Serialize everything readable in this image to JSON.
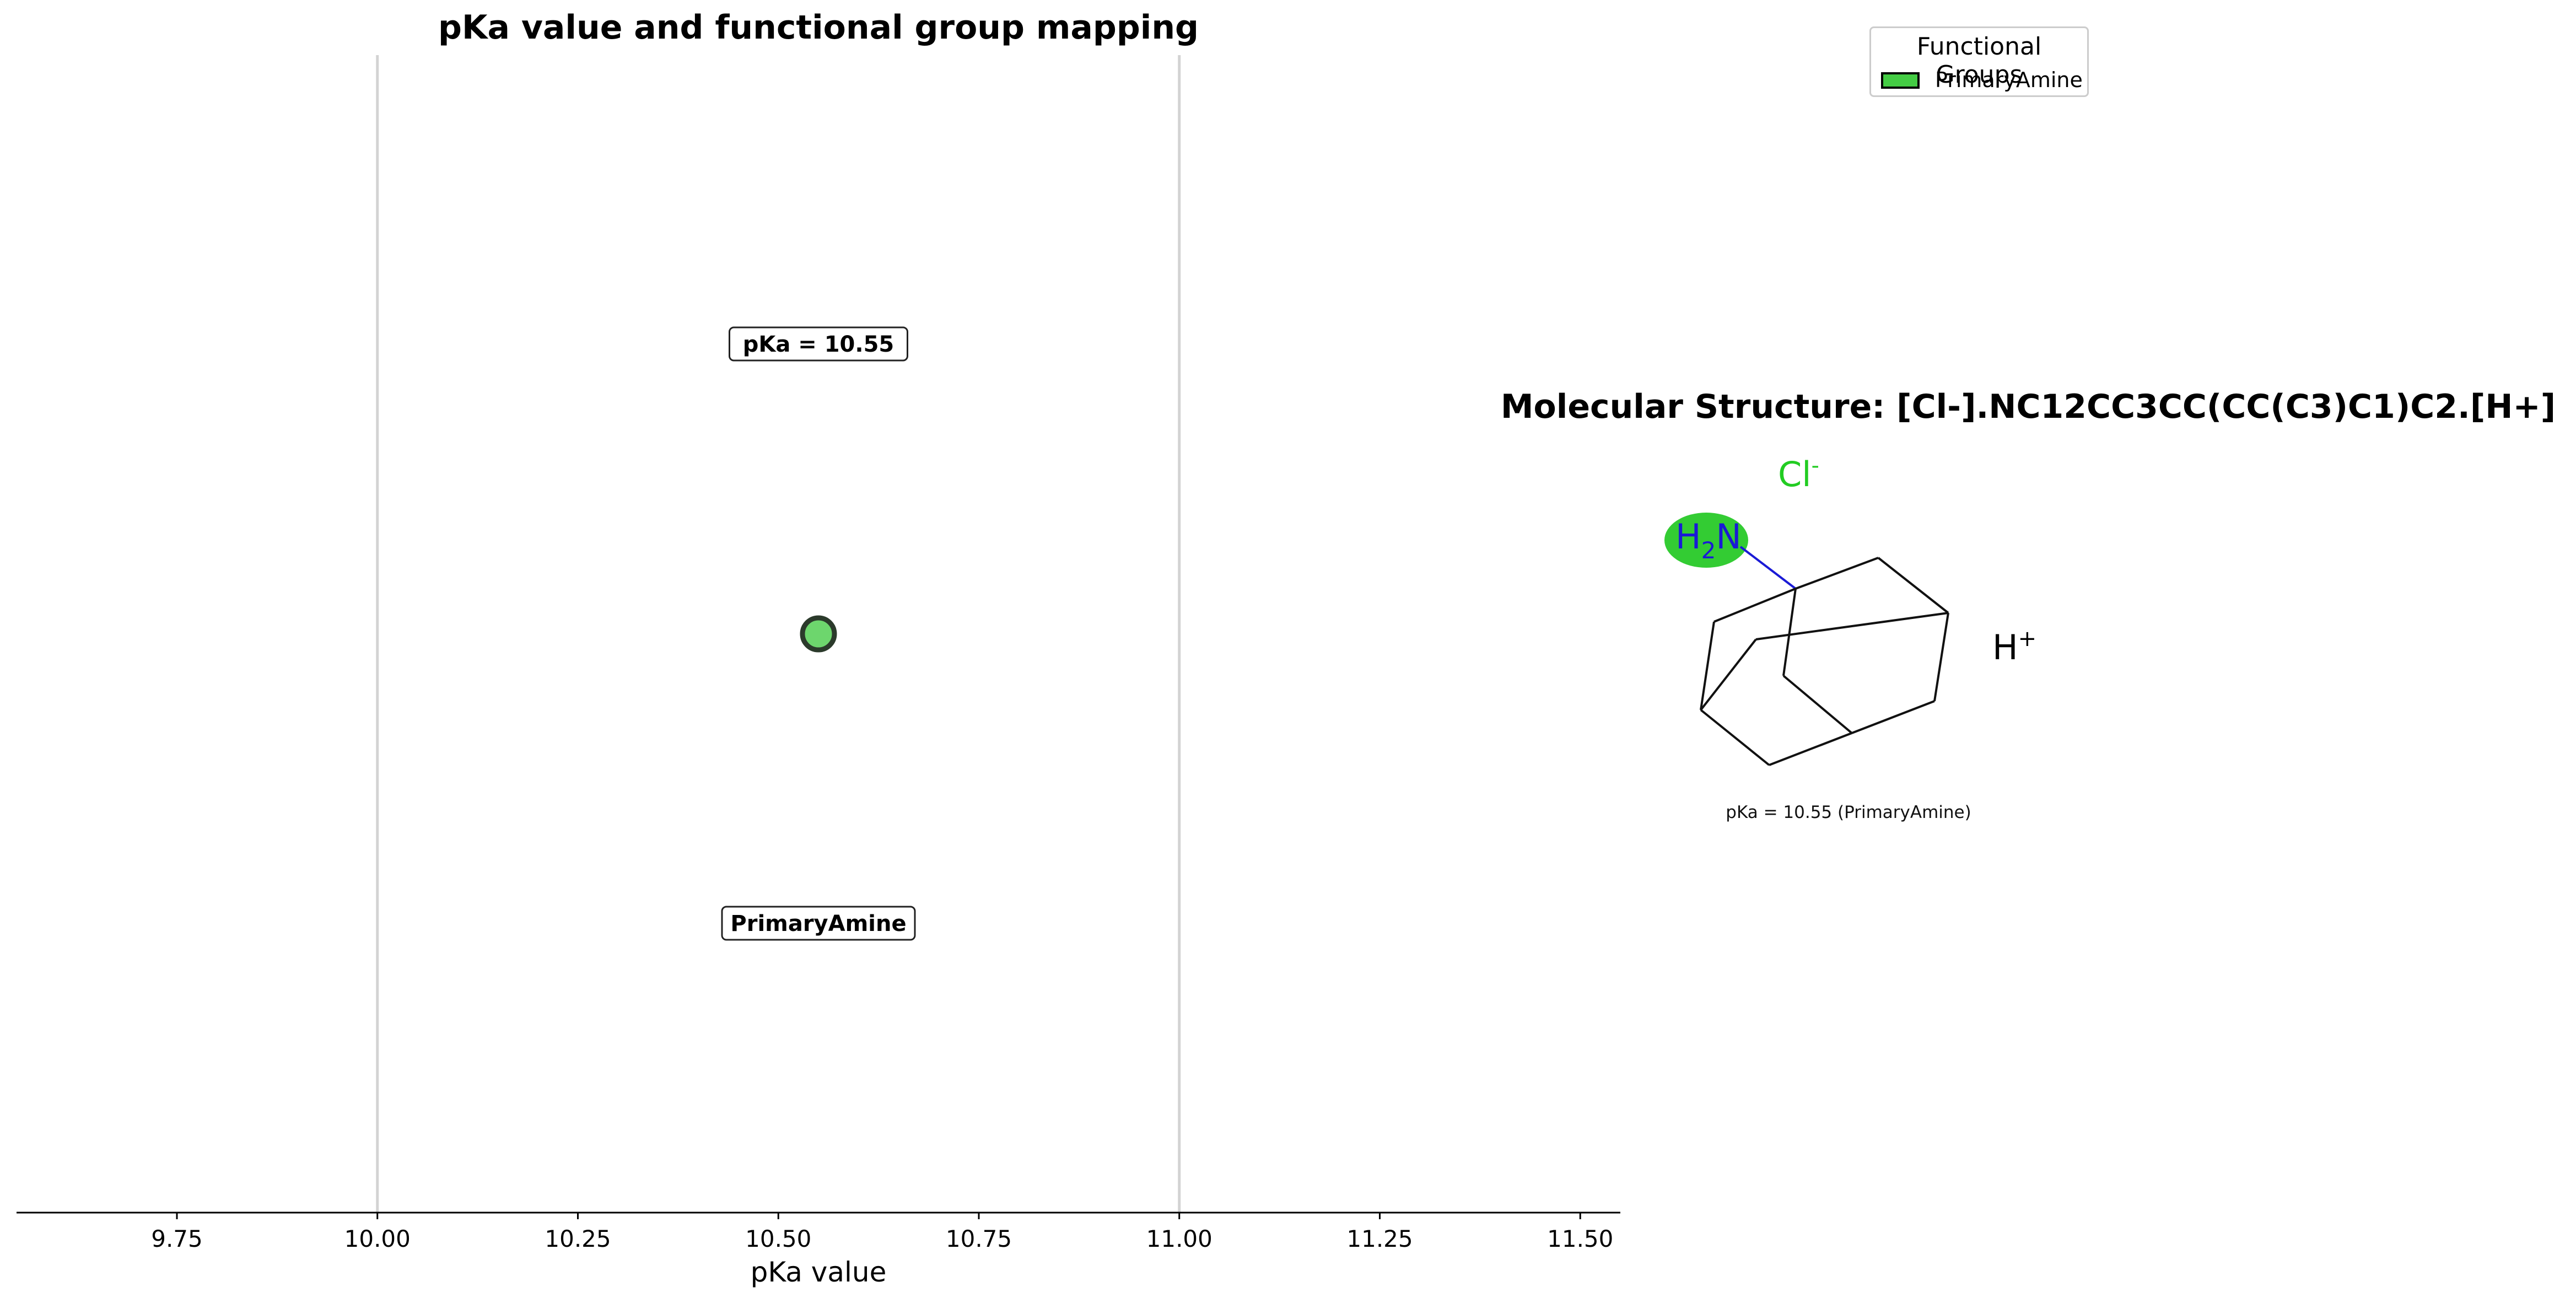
{
  "chart_data": [
    {
      "type": "scatter",
      "title": "pKa value and functional group mapping",
      "xlabel": "pKa value",
      "ylabel": "",
      "xlim": [
        9.55,
        11.55
      ],
      "xticks": [
        9.75,
        10.0,
        10.25,
        10.5,
        10.75,
        11.0,
        11.25,
        11.5
      ],
      "xtick_labels": [
        "9.75",
        "10.00",
        "10.25",
        "10.50",
        "10.75",
        "11.00",
        "11.25",
        "11.50"
      ],
      "vlines": [
        10.0,
        11.0
      ],
      "grid": false,
      "series": [
        {
          "name": "PrimaryAmine",
          "points": [
            {
              "x": 10.55,
              "y": 0
            }
          ],
          "color": "#6dd66d",
          "edgecolor": "#2b3a2b"
        }
      ],
      "annotations": [
        {
          "text": "pKa = 10.55",
          "x": 10.55,
          "position": "above"
        },
        {
          "text": "PrimaryAmine",
          "x": 10.55,
          "position": "below"
        }
      ]
    }
  ],
  "structure": {
    "title": "Molecular Structure: [Cl-].NC12CC3CC(CC(C3)C1)C2.[H+]",
    "chloride": "Cl",
    "chloride_charge": "-",
    "amine_h": "H",
    "amine_subscript": "2",
    "amine_n": "N",
    "proton": "H",
    "proton_charge": "+",
    "caption": "pKa = 10.55 (PrimaryAmine)",
    "highlight_color": "#33cc33",
    "nitrogen_color": "#1a1ad6",
    "chloride_color": "#22cc22"
  },
  "legend": {
    "title": "Functional Groups",
    "items": [
      {
        "label": "PrimaryAmine",
        "color": "#44cc44"
      }
    ]
  }
}
